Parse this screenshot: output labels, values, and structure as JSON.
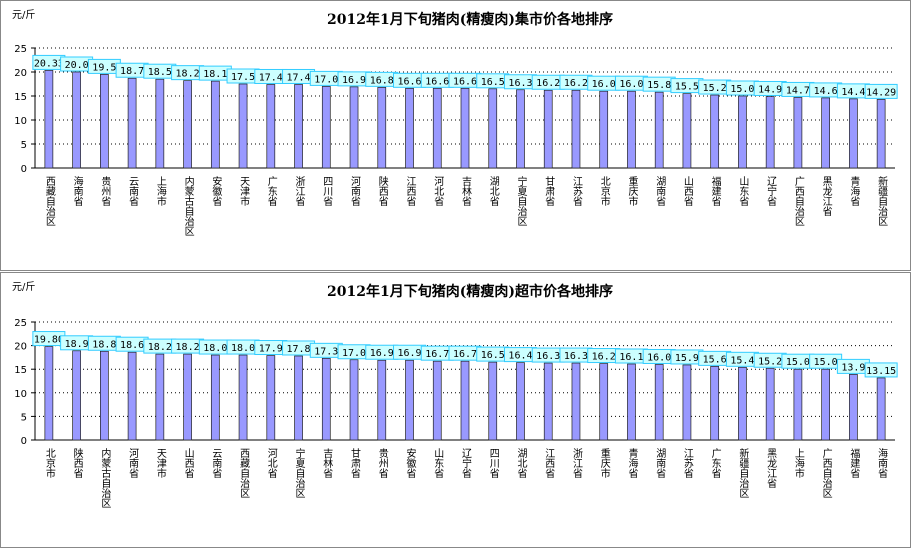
{
  "chart_data": [
    {
      "type": "bar",
      "title": "2012年1月下旬猪肉(精瘦肉)集市价各地排序",
      "y_label": "元/斤",
      "color": "#9999ff",
      "grid": true,
      "ylim": [
        0,
        25
      ],
      "yticks": [
        0,
        5,
        10,
        15,
        20,
        25
      ],
      "categories": [
        "西藏自治区",
        "海南省",
        "贵州省",
        "云南省",
        "上海市",
        "内蒙古自治区",
        "安徽省",
        "天津市",
        "广东省",
        "浙江省",
        "四川省",
        "河南省",
        "陕西省",
        "江西省",
        "河北省",
        "吉林省",
        "湖北省",
        "宁夏自治区",
        "甘肃省",
        "江苏省",
        "北京市",
        "重庆市",
        "湖南省",
        "山西省",
        "福建省",
        "山东省",
        "辽宁省",
        "广西自治区",
        "黑龙江省",
        "青海省",
        "新疆自治区"
      ],
      "values": [
        20.33,
        20.0,
        19.5,
        18.7,
        18.5,
        18.2,
        18.1,
        17.5,
        17.4,
        17.4,
        17.0,
        16.9,
        16.8,
        16.6,
        16.6,
        16.6,
        16.5,
        16.3,
        16.2,
        16.2,
        16.0,
        16.0,
        15.8,
        15.5,
        15.2,
        15.0,
        14.9,
        14.7,
        14.6,
        14.4,
        14.29
      ],
      "value_labels": [
        "20.33",
        "20.0",
        "19.5",
        "18.7",
        "18.5",
        "18.2",
        "18.1",
        "17.5",
        "17.4",
        "17.4",
        "17.0",
        "16.9",
        "16.8",
        "16.6",
        "16.6",
        "16.6",
        "16.5",
        "16.3",
        "16.2",
        "16.2",
        "16.0",
        "16.0",
        "15.8",
        "15.5",
        "15.2",
        "15.0",
        "14.9",
        "14.7",
        "14.6",
        "14.4",
        "14.29"
      ]
    },
    {
      "type": "bar",
      "title": "2012年1月下旬猪肉(精瘦肉)超市价各地排序",
      "y_label": "元/斤",
      "color": "#9999ff",
      "grid": true,
      "ylim": [
        0,
        25
      ],
      "yticks": [
        0,
        5,
        10,
        15,
        20,
        25
      ],
      "categories": [
        "北京市",
        "陕西省",
        "内蒙古自治区",
        "河南省",
        "天津市",
        "山西省",
        "云南省",
        "西藏自治区",
        "河北省",
        "宁夏自治区",
        "吉林省",
        "甘肃省",
        "贵州省",
        "安徽省",
        "山东省",
        "辽宁省",
        "四川省",
        "湖北省",
        "江西省",
        "浙江省",
        "重庆市",
        "青海省",
        "湖南省",
        "江苏省",
        "广东省",
        "新疆自治区",
        "黑龙江省",
        "上海市",
        "广西自治区",
        "福建省",
        "海南省"
      ],
      "values": [
        19.8,
        18.9,
        18.8,
        18.6,
        18.2,
        18.2,
        18.0,
        18.0,
        17.9,
        17.8,
        17.3,
        17.0,
        16.9,
        16.9,
        16.7,
        16.7,
        16.5,
        16.4,
        16.3,
        16.3,
        16.2,
        16.1,
        16.0,
        15.9,
        15.6,
        15.4,
        15.2,
        15.0,
        15.0,
        13.9,
        13.15
      ],
      "value_labels": [
        "19.80",
        "18.9",
        "18.8",
        "18.6",
        "18.2",
        "18.2",
        "18.0",
        "18.0",
        "17.9",
        "17.8",
        "17.3",
        "17.0",
        "16.9",
        "16.9",
        "16.7",
        "16.7",
        "16.5",
        "16.4",
        "16.3",
        "16.3",
        "16.2",
        "16.1",
        "16.0",
        "15.9",
        "15.6",
        "15.4",
        "15.2",
        "15.0",
        "15.0",
        "13.9",
        "13.15"
      ]
    }
  ]
}
